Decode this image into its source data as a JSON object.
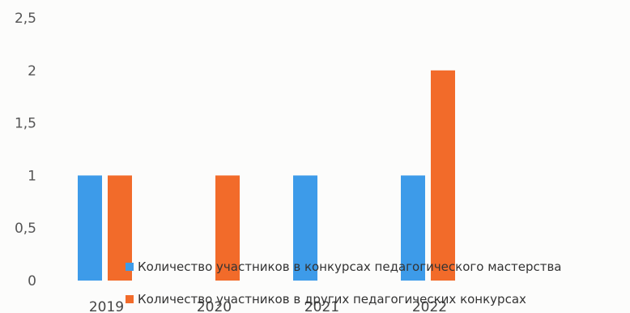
{
  "chart_data": {
    "type": "bar",
    "categories": [
      "2019",
      "2020",
      "2021",
      "2022"
    ],
    "series": [
      {
        "name": "Количество участников в конкурсах педагогического мастерства",
        "values": [
          1,
          0,
          1,
          1
        ],
        "color": "#3d9be9"
      },
      {
        "name": "Количество участников в других педагогических конкурсах",
        "values": [
          1,
          1,
          0,
          2
        ],
        "color": "#f26b2a"
      }
    ],
    "ylim": [
      0,
      2.5
    ],
    "yticks": [
      "0",
      "0,5",
      "1",
      "1,5",
      "2",
      "2,5"
    ],
    "title": "",
    "xlabel": "",
    "ylabel": "",
    "legend_position": "bottom-right",
    "grid": false
  }
}
